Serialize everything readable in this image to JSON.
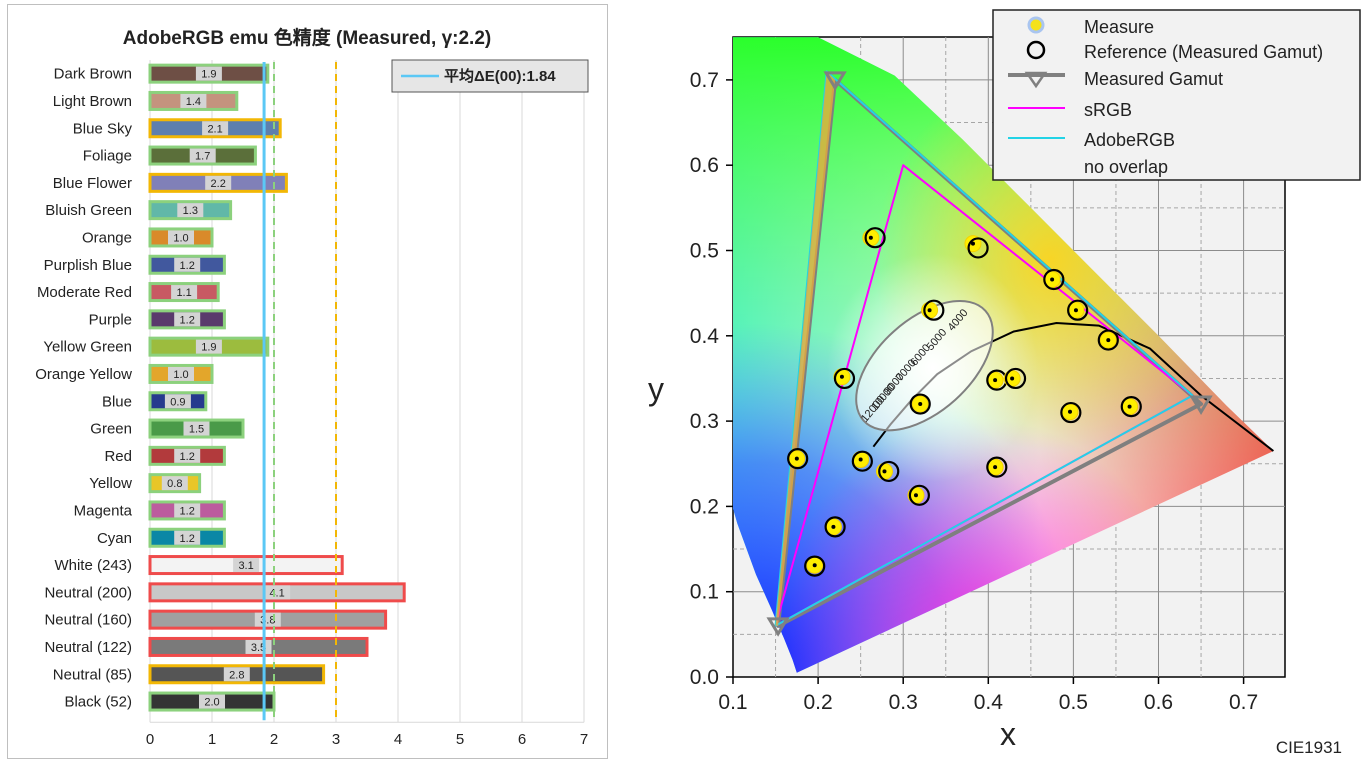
{
  "chart_data": [
    {
      "type": "bar",
      "title": "AdobeRGB emu 色精度 (Measured, γ:2.2)",
      "legend": {
        "label": "平均ΔE(00):1.84",
        "position": "top-right"
      },
      "average": 1.84,
      "xlim": [
        0,
        7
      ],
      "xticks": [
        "0",
        "1",
        "2",
        "3",
        "4",
        "5",
        "6",
        "7"
      ],
      "reference_lines": [
        2,
        3
      ],
      "grid": true,
      "categories": [
        "Dark Brown",
        "Light Brown",
        "Blue Sky",
        "Foliage",
        "Blue Flower",
        "Bluish Green",
        "Orange",
        "Purplish Blue",
        "Moderate Red",
        "Purple",
        "Yellow Green",
        "Orange Yellow",
        "Blue",
        "Green",
        "Red",
        "Yellow",
        "Magenta",
        "Cyan",
        "White (243)",
        "Neutral (200)",
        "Neutral (160)",
        "Neutral (122)",
        "Neutral (85)",
        "Black (52)"
      ],
      "values": [
        1.9,
        1.4,
        2.1,
        1.7,
        2.2,
        1.3,
        1.0,
        1.2,
        1.1,
        1.2,
        1.9,
        1.0,
        0.9,
        1.5,
        1.2,
        0.8,
        1.2,
        1.2,
        3.1,
        4.1,
        3.8,
        3.5,
        2.8,
        2.0
      ],
      "value_labels": [
        "1.9",
        "1.4",
        "2.1",
        "1.7",
        "2.2",
        "1.3",
        "1.0",
        "1.2",
        "1.1",
        "1.2",
        "1.9",
        "1.0",
        "0.9",
        "1.5",
        "1.2",
        "0.8",
        "1.2",
        "1.2",
        "3.1",
        "4.1",
        "3.8",
        "3.5",
        "2.8",
        "2.0"
      ],
      "bar_colors": [
        "#6e4f45",
        "#c4937e",
        "#5d7fae",
        "#5b6f3a",
        "#8080b8",
        "#61b8a8",
        "#d98a2a",
        "#41589e",
        "#c85a63",
        "#5a3a6c",
        "#9cbc3e",
        "#e3a62b",
        "#263a8e",
        "#4a9a48",
        "#b23a3c",
        "#e8c628",
        "#bc5c9e",
        "#0a87a5",
        "#f3f3f3",
        "#c8c8c8",
        "#a0a0a0",
        "#7a7a7a",
        "#555555",
        "#343434"
      ],
      "border_colors": [
        "#8cd17d",
        "#8cd17d",
        "#f2b705",
        "#8cd17d",
        "#f2b705",
        "#8cd17d",
        "#8cd17d",
        "#8cd17d",
        "#8cd17d",
        "#8cd17d",
        "#8cd17d",
        "#8cd17d",
        "#8cd17d",
        "#8cd17d",
        "#8cd17d",
        "#8cd17d",
        "#8cd17d",
        "#8cd17d",
        "#ef4b4b",
        "#ef4b4b",
        "#ef4b4b",
        "#ef4b4b",
        "#f2b705",
        "#8cd17d"
      ]
    },
    {
      "type": "scatter",
      "subtype": "cie1931-chromaticity",
      "xlabel": "x",
      "ylabel": "y",
      "xlim": [
        0.1,
        0.75
      ],
      "ylim": [
        0.0,
        0.75
      ],
      "xticks": [
        "0.1",
        "0.2",
        "0.3",
        "0.4",
        "0.5",
        "0.6",
        "0.7"
      ],
      "yticks": [
        "0.0",
        "0.1",
        "0.2",
        "0.3",
        "0.4",
        "0.5",
        "0.6",
        "0.7"
      ],
      "footer": "CIE1931",
      "legend": {
        "position": "top-right",
        "entries": [
          "Measure",
          "Reference (Measured Gamut)",
          "Measured Gamut",
          "sRGB",
          "AdobeRGB",
          "no overlap"
        ]
      },
      "series": [
        {
          "name": "Measured Gamut",
          "points": [
            [
              0.22,
              0.7
            ],
            [
              0.65,
              0.32
            ],
            [
              0.153,
              0.06
            ]
          ],
          "color": "#7f7f7f"
        },
        {
          "name": "sRGB",
          "points": [
            [
              0.64,
              0.33
            ],
            [
              0.3,
              0.6
            ],
            [
              0.15,
              0.06
            ]
          ],
          "color": "#ff00ff"
        },
        {
          "name": "AdobeRGB",
          "points": [
            [
              0.64,
              0.33
            ],
            [
              0.21,
              0.71
            ],
            [
              0.15,
              0.06
            ]
          ],
          "color": "#22d3e6"
        }
      ],
      "measure_points": [
        [
          0.262,
          0.515
        ],
        [
          0.382,
          0.508
        ],
        [
          0.475,
          0.466
        ],
        [
          0.331,
          0.43
        ],
        [
          0.503,
          0.43
        ],
        [
          0.541,
          0.395
        ],
        [
          0.228,
          0.352
        ],
        [
          0.408,
          0.348
        ],
        [
          0.428,
          0.35
        ],
        [
          0.32,
          0.32
        ],
        [
          0.566,
          0.317
        ],
        [
          0.496,
          0.311
        ],
        [
          0.175,
          0.256
        ],
        [
          0.25,
          0.255
        ],
        [
          0.278,
          0.241
        ],
        [
          0.408,
          0.246
        ],
        [
          0.315,
          0.213
        ],
        [
          0.218,
          0.176
        ],
        [
          0.196,
          0.131
        ]
      ],
      "reference_points": [
        [
          0.267,
          0.515
        ],
        [
          0.388,
          0.503
        ],
        [
          0.477,
          0.466
        ],
        [
          0.336,
          0.43
        ],
        [
          0.505,
          0.43
        ],
        [
          0.541,
          0.395
        ],
        [
          0.231,
          0.35
        ],
        [
          0.41,
          0.348
        ],
        [
          0.432,
          0.35
        ],
        [
          0.32,
          0.32
        ],
        [
          0.568,
          0.317
        ],
        [
          0.497,
          0.31
        ],
        [
          0.176,
          0.256
        ],
        [
          0.252,
          0.253
        ],
        [
          0.283,
          0.241
        ],
        [
          0.41,
          0.246
        ],
        [
          0.319,
          0.213
        ],
        [
          0.22,
          0.176
        ],
        [
          0.196,
          0.13
        ]
      ],
      "cct_labels": [
        "4000",
        "5000",
        "6000",
        "7000",
        "8000",
        "10000",
        "12000"
      ]
    }
  ],
  "colors": {
    "average_line": "#5bc8f5",
    "line_2": "#8cd17d",
    "line_3": "#f2b705"
  }
}
